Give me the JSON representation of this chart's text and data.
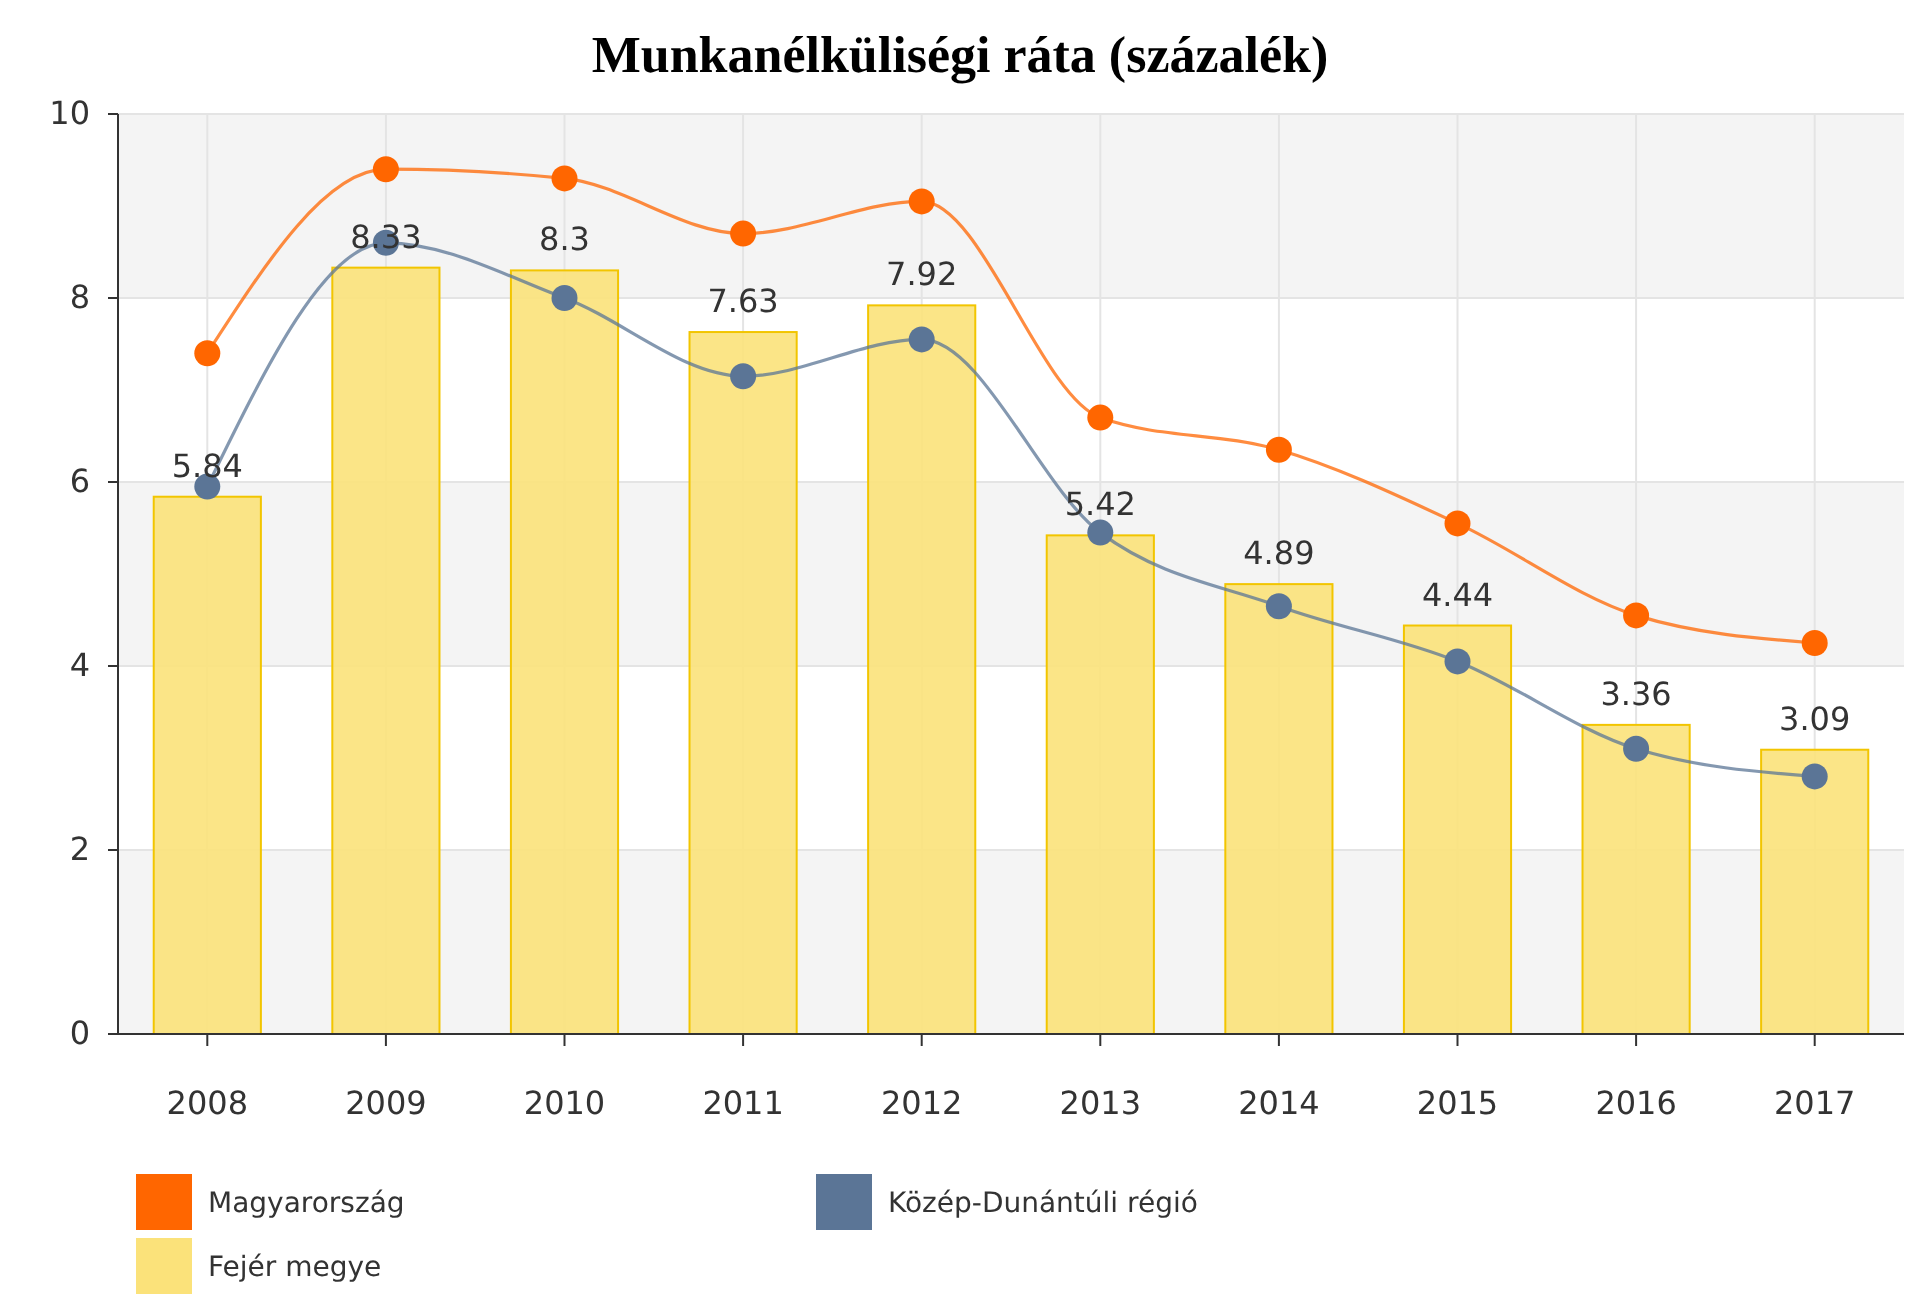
{
  "chart_data": {
    "type": "bar",
    "title": "Munkanélküliségi ráta (százalék)",
    "categories": [
      "2008",
      "2009",
      "2010",
      "2011",
      "2012",
      "2013",
      "2014",
      "2015",
      "2016",
      "2017"
    ],
    "series": [
      {
        "name": "Magyarország",
        "type": "line",
        "color": "#ff6600",
        "values": [
          7.4,
          9.4,
          9.3,
          8.7,
          9.05,
          6.7,
          6.35,
          5.55,
          4.55,
          4.25
        ]
      },
      {
        "name": "Közép-Dunántúli régió",
        "type": "line",
        "color": "#5b7596",
        "values": [
          5.95,
          8.6,
          8.0,
          7.15,
          7.55,
          5.45,
          4.65,
          4.05,
          3.1,
          2.8
        ]
      },
      {
        "name": "Fejér megye",
        "color": "#fbe27a",
        "values": [
          5.84,
          8.33,
          8.3,
          7.63,
          7.92,
          5.42,
          4.89,
          4.44,
          3.36,
          3.09
        ],
        "value_labels": [
          "5.84",
          "8.33",
          "8.3",
          "7.63",
          "7.92",
          "5.42",
          "4.89",
          "4.44",
          "3.36",
          "3.09"
        ]
      }
    ],
    "ylim": [
      0,
      10
    ],
    "yticks": [
      0,
      2,
      4,
      6,
      8,
      10
    ],
    "grid": true,
    "legend": "bottom",
    "marker": "circle",
    "line_style": "solid"
  }
}
